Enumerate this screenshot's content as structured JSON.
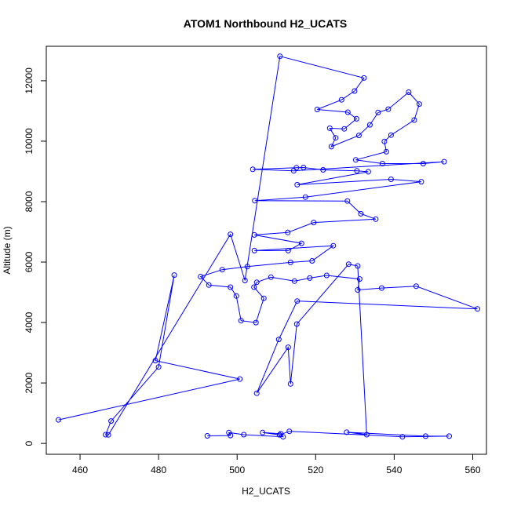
{
  "chart_data": {
    "type": "line",
    "title": "ATOM1 Northbound H2_UCATS",
    "xlabel": "H2_UCATS",
    "ylabel": "Altitude (m)",
    "xlim": [
      451.4,
      563.5
    ],
    "ylim": [
      -360,
      13140
    ],
    "xticks": [
      460,
      480,
      500,
      520,
      540,
      560
    ],
    "yticks": [
      0,
      2000,
      4000,
      6000,
      8000,
      10000,
      12000
    ],
    "grid": false,
    "series": [
      {
        "color": "#0000ff",
        "marker": "open-circle",
        "points": [
          [
            454.5,
            780
          ],
          [
            500.7,
            2130
          ],
          [
            479.2,
            2740
          ],
          [
            484.0,
            5570
          ],
          [
            480.0,
            2530
          ],
          [
            467.9,
            740
          ],
          [
            466.5,
            290
          ],
          [
            467.2,
            280
          ],
          [
            498.3,
            6920
          ],
          [
            502.0,
            5390
          ],
          [
            510.9,
            12810
          ],
          [
            532.3,
            12090
          ],
          [
            529.9,
            11660
          ],
          [
            526.6,
            11370
          ],
          [
            520.4,
            11050
          ],
          [
            528.2,
            10960
          ],
          [
            530.4,
            10740
          ],
          [
            527.3,
            10410
          ],
          [
            523.6,
            10430
          ],
          [
            525.1,
            10110
          ],
          [
            524.0,
            9820
          ],
          [
            531.0,
            10190
          ],
          [
            533.8,
            10540
          ],
          [
            535.9,
            10950
          ],
          [
            538.5,
            11060
          ],
          [
            543.7,
            11620
          ],
          [
            546.4,
            11230
          ],
          [
            545.1,
            10700
          ],
          [
            539.2,
            10200
          ],
          [
            537.5,
            9990
          ],
          [
            538.0,
            9650
          ],
          [
            530.2,
            9380
          ],
          [
            537.0,
            9260
          ],
          [
            547.4,
            9260
          ],
          [
            552.7,
            9320
          ],
          [
            514.4,
            9020
          ],
          [
            504.0,
            9070
          ],
          [
            515.1,
            9120
          ],
          [
            516.9,
            9130
          ],
          [
            521.9,
            9050
          ],
          [
            530.5,
            9020
          ],
          [
            533.4,
            8990
          ],
          [
            515.3,
            8560
          ],
          [
            539.2,
            8740
          ],
          [
            546.9,
            8660
          ],
          [
            517.4,
            8150
          ],
          [
            504.5,
            8030
          ],
          [
            528.1,
            8020
          ],
          [
            531.5,
            7600
          ],
          [
            535.3,
            7420
          ],
          [
            519.5,
            7310
          ],
          [
            512.9,
            6980
          ],
          [
            504.4,
            6900
          ],
          [
            516.4,
            6620
          ],
          [
            513.0,
            6380
          ],
          [
            504.4,
            6380
          ],
          [
            524.5,
            6540
          ],
          [
            519.1,
            6040
          ],
          [
            513.6,
            5990
          ],
          [
            502.6,
            5850
          ],
          [
            496.2,
            5750
          ],
          [
            490.7,
            5520
          ],
          [
            492.8,
            5240
          ],
          [
            498.3,
            5170
          ],
          [
            499.8,
            4880
          ],
          [
            501.0,
            4060
          ],
          [
            504.8,
            4000
          ],
          [
            506.8,
            4800
          ],
          [
            504.3,
            5170
          ],
          [
            505.0,
            5330
          ],
          [
            508.6,
            5500
          ],
          [
            514.6,
            5370
          ],
          [
            518.5,
            5470
          ],
          [
            522.8,
            5560
          ],
          [
            531.2,
            5440
          ],
          [
            530.7,
            5080
          ],
          [
            536.8,
            5140
          ],
          [
            545.6,
            5200
          ],
          [
            561.2,
            4450
          ],
          [
            515.3,
            4710
          ],
          [
            510.6,
            3440
          ],
          [
            505.0,
            1660
          ],
          [
            513.0,
            3180
          ],
          [
            513.6,
            1970
          ],
          [
            515.2,
            3950
          ],
          [
            528.4,
            5930
          ],
          [
            530.7,
            5870
          ],
          [
            533.0,
            290
          ],
          [
            527.9,
            370
          ],
          [
            548.0,
            240
          ],
          [
            554.0,
            240
          ],
          [
            542.1,
            220
          ],
          [
            513.3,
            400
          ],
          [
            510.8,
            280
          ],
          [
            506.5,
            360
          ],
          [
            511.1,
            320
          ],
          [
            511.7,
            220
          ],
          [
            501.7,
            290
          ],
          [
            497.9,
            360
          ],
          [
            498.3,
            260
          ],
          [
            492.4,
            250
          ]
        ]
      }
    ]
  }
}
